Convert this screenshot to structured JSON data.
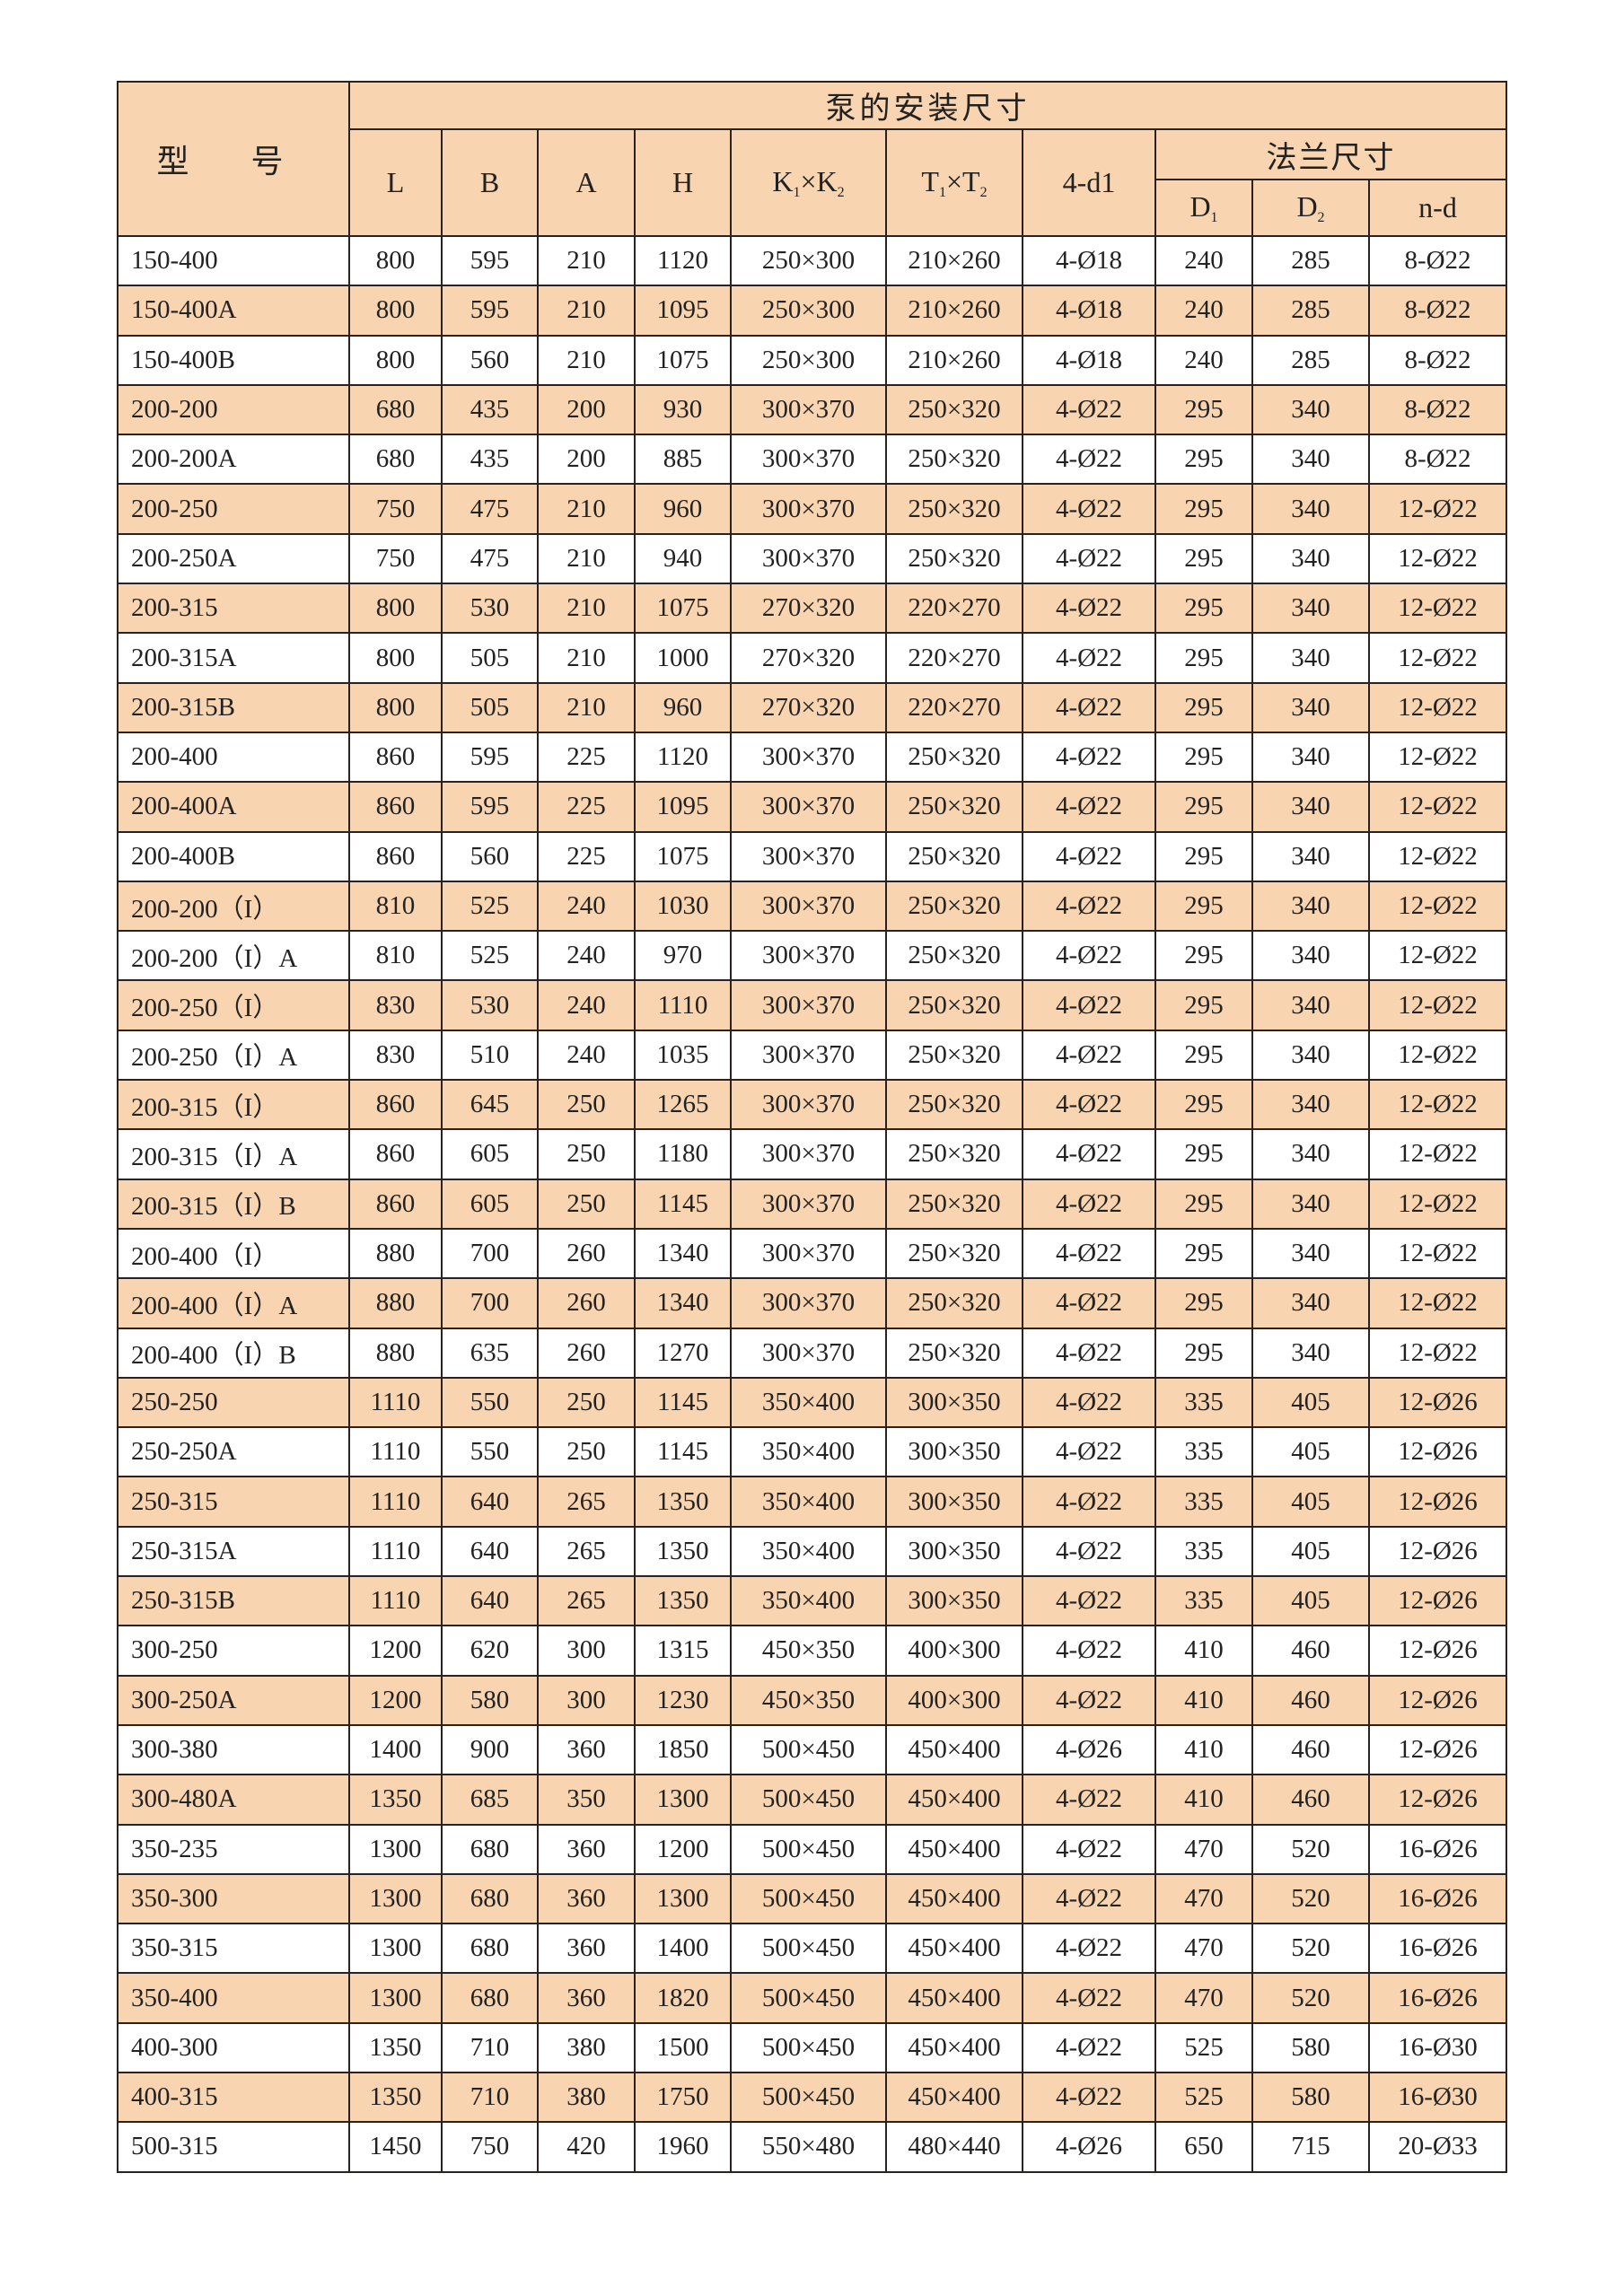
{
  "header": {
    "model": "型 号",
    "group_title": "泵的安装尺寸",
    "flange_title": "法兰尺寸",
    "cols": {
      "L": "L",
      "B": "B",
      "A": "A",
      "H": "H",
      "K": "K",
      "K1": "1",
      "K2": "2",
      "times": "×",
      "T": "T",
      "T1": "1",
      "T2": "2",
      "d1": "4-d1",
      "D": "D",
      "D1": "1",
      "D2": "2",
      "nd": "n-d"
    }
  },
  "colors": {
    "highlight_row": "#f8d4b0",
    "border": "#2a2220"
  },
  "rows": [
    [
      "150-400",
      "800",
      "595",
      "210",
      "1120",
      "250×300",
      "210×260",
      "4-Ø18",
      "240",
      "285",
      "8-Ø22"
    ],
    [
      "150-400A",
      "800",
      "595",
      "210",
      "1095",
      "250×300",
      "210×260",
      "4-Ø18",
      "240",
      "285",
      "8-Ø22"
    ],
    [
      "150-400B",
      "800",
      "560",
      "210",
      "1075",
      "250×300",
      "210×260",
      "4-Ø18",
      "240",
      "285",
      "8-Ø22"
    ],
    [
      "200-200",
      "680",
      "435",
      "200",
      "930",
      "300×370",
      "250×320",
      "4-Ø22",
      "295",
      "340",
      "8-Ø22"
    ],
    [
      "200-200A",
      "680",
      "435",
      "200",
      "885",
      "300×370",
      "250×320",
      "4-Ø22",
      "295",
      "340",
      "8-Ø22"
    ],
    [
      "200-250",
      "750",
      "475",
      "210",
      "960",
      "300×370",
      "250×320",
      "4-Ø22",
      "295",
      "340",
      "12-Ø22"
    ],
    [
      "200-250A",
      "750",
      "475",
      "210",
      "940",
      "300×370",
      "250×320",
      "4-Ø22",
      "295",
      "340",
      "12-Ø22"
    ],
    [
      "200-315",
      "800",
      "530",
      "210",
      "1075",
      "270×320",
      "220×270",
      "4-Ø22",
      "295",
      "340",
      "12-Ø22"
    ],
    [
      "200-315A",
      "800",
      "505",
      "210",
      "1000",
      "270×320",
      "220×270",
      "4-Ø22",
      "295",
      "340",
      "12-Ø22"
    ],
    [
      "200-315B",
      "800",
      "505",
      "210",
      "960",
      "270×320",
      "220×270",
      "4-Ø22",
      "295",
      "340",
      "12-Ø22"
    ],
    [
      "200-400",
      "860",
      "595",
      "225",
      "1120",
      "300×370",
      "250×320",
      "4-Ø22",
      "295",
      "340",
      "12-Ø22"
    ],
    [
      "200-400A",
      "860",
      "595",
      "225",
      "1095",
      "300×370",
      "250×320",
      "4-Ø22",
      "295",
      "340",
      "12-Ø22"
    ],
    [
      "200-400B",
      "860",
      "560",
      "225",
      "1075",
      "300×370",
      "250×320",
      "4-Ø22",
      "295",
      "340",
      "12-Ø22"
    ],
    [
      "200-200（I）",
      "810",
      "525",
      "240",
      "1030",
      "300×370",
      "250×320",
      "4-Ø22",
      "295",
      "340",
      "12-Ø22"
    ],
    [
      "200-200（I）A",
      "810",
      "525",
      "240",
      "970",
      "300×370",
      "250×320",
      "4-Ø22",
      "295",
      "340",
      "12-Ø22"
    ],
    [
      "200-250（I）",
      "830",
      "530",
      "240",
      "1110",
      "300×370",
      "250×320",
      "4-Ø22",
      "295",
      "340",
      "12-Ø22"
    ],
    [
      "200-250（I）A",
      "830",
      "510",
      "240",
      "1035",
      "300×370",
      "250×320",
      "4-Ø22",
      "295",
      "340",
      "12-Ø22"
    ],
    [
      "200-315（I）",
      "860",
      "645",
      "250",
      "1265",
      "300×370",
      "250×320",
      "4-Ø22",
      "295",
      "340",
      "12-Ø22"
    ],
    [
      "200-315（I）A",
      "860",
      "605",
      "250",
      "1180",
      "300×370",
      "250×320",
      "4-Ø22",
      "295",
      "340",
      "12-Ø22"
    ],
    [
      "200-315（I）B",
      "860",
      "605",
      "250",
      "1145",
      "300×370",
      "250×320",
      "4-Ø22",
      "295",
      "340",
      "12-Ø22"
    ],
    [
      "200-400（I）",
      "880",
      "700",
      "260",
      "1340",
      "300×370",
      "250×320",
      "4-Ø22",
      "295",
      "340",
      "12-Ø22"
    ],
    [
      "200-400（I）A",
      "880",
      "700",
      "260",
      "1340",
      "300×370",
      "250×320",
      "4-Ø22",
      "295",
      "340",
      "12-Ø22"
    ],
    [
      "200-400（I）B",
      "880",
      "635",
      "260",
      "1270",
      "300×370",
      "250×320",
      "4-Ø22",
      "295",
      "340",
      "12-Ø22"
    ],
    [
      "250-250",
      "1110",
      "550",
      "250",
      "1145",
      "350×400",
      "300×350",
      "4-Ø22",
      "335",
      "405",
      "12-Ø26"
    ],
    [
      "250-250A",
      "1110",
      "550",
      "250",
      "1145",
      "350×400",
      "300×350",
      "4-Ø22",
      "335",
      "405",
      "12-Ø26"
    ],
    [
      "250-315",
      "1110",
      "640",
      "265",
      "1350",
      "350×400",
      "300×350",
      "4-Ø22",
      "335",
      "405",
      "12-Ø26"
    ],
    [
      "250-315A",
      "1110",
      "640",
      "265",
      "1350",
      "350×400",
      "300×350",
      "4-Ø22",
      "335",
      "405",
      "12-Ø26"
    ],
    [
      "250-315B",
      "1110",
      "640",
      "265",
      "1350",
      "350×400",
      "300×350",
      "4-Ø22",
      "335",
      "405",
      "12-Ø26"
    ],
    [
      "300-250",
      "1200",
      "620",
      "300",
      "1315",
      "450×350",
      "400×300",
      "4-Ø22",
      "410",
      "460",
      "12-Ø26"
    ],
    [
      "300-250A",
      "1200",
      "580",
      "300",
      "1230",
      "450×350",
      "400×300",
      "4-Ø22",
      "410",
      "460",
      "12-Ø26"
    ],
    [
      "300-380",
      "1400",
      "900",
      "360",
      "1850",
      "500×450",
      "450×400",
      "4-Ø26",
      "410",
      "460",
      "12-Ø26"
    ],
    [
      "300-480A",
      "1350",
      "685",
      "350",
      "1300",
      "500×450",
      "450×400",
      "4-Ø22",
      "410",
      "460",
      "12-Ø26"
    ],
    [
      "350-235",
      "1300",
      "680",
      "360",
      "1200",
      "500×450",
      "450×400",
      "4-Ø22",
      "470",
      "520",
      "16-Ø26"
    ],
    [
      "350-300",
      "1300",
      "680",
      "360",
      "1300",
      "500×450",
      "450×400",
      "4-Ø22",
      "470",
      "520",
      "16-Ø26"
    ],
    [
      "350-315",
      "1300",
      "680",
      "360",
      "1400",
      "500×450",
      "450×400",
      "4-Ø22",
      "470",
      "520",
      "16-Ø26"
    ],
    [
      "350-400",
      "1300",
      "680",
      "360",
      "1820",
      "500×450",
      "450×400",
      "4-Ø22",
      "470",
      "520",
      "16-Ø26"
    ],
    [
      "400-300",
      "1350",
      "710",
      "380",
      "1500",
      "500×450",
      "450×400",
      "4-Ø22",
      "525",
      "580",
      "16-Ø30"
    ],
    [
      "400-315",
      "1350",
      "710",
      "380",
      "1750",
      "500×450",
      "450×400",
      "4-Ø22",
      "525",
      "580",
      "16-Ø30"
    ],
    [
      "500-315",
      "1450",
      "750",
      "420",
      "1960",
      "550×480",
      "480×440",
      "4-Ø26",
      "650",
      "715",
      "20-Ø33"
    ]
  ]
}
